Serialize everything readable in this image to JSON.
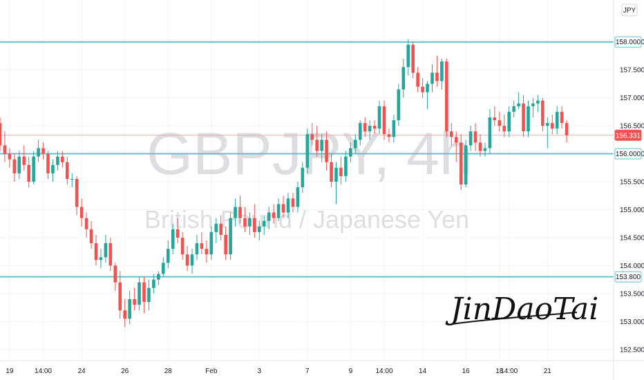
{
  "chart_data": {
    "type": "candlestick",
    "symbol_watermark": "GBPJPY, 4h",
    "name_watermark": "British Pound / Japanese Yen",
    "currency_label": "JPY",
    "signature": "JinDaoTai",
    "ylim": [
      152.3,
      158.75
    ],
    "y_ticks": [
      "152.500",
      "153.000",
      "153.500",
      "154.000",
      "154.500",
      "155.000",
      "155.500",
      "156.000",
      "156.500",
      "157.000",
      "157.500",
      "158.000"
    ],
    "x_ticks": [
      {
        "label": "19",
        "index": 2
      },
      {
        "label": "14:00",
        "index": 9
      },
      {
        "label": "24",
        "index": 17
      },
      {
        "label": "26",
        "index": 26
      },
      {
        "label": "28",
        "index": 35
      },
      {
        "label": "Feb",
        "index": 44
      },
      {
        "label": "3",
        "index": 54
      },
      {
        "label": "7",
        "index": 64
      },
      {
        "label": "9",
        "index": 73
      },
      {
        "label": "14:00",
        "index": 80
      },
      {
        "label": "14",
        "index": 88
      },
      {
        "label": "16",
        "index": 97
      },
      {
        "label": "18",
        "index": 104
      },
      {
        "label": "14:00",
        "index": 106
      },
      {
        "label": "21",
        "index": 114
      }
    ],
    "horizontal_lines": [
      {
        "value": 158.0,
        "label": "158.000"
      },
      {
        "value": 156.0,
        "label": "156.000"
      },
      {
        "value": 153.8,
        "label": "153.800"
      }
    ],
    "last_price": {
      "value": 156.331,
      "label": "156.331"
    },
    "colors": {
      "up": "#26a69a",
      "down": "#ef5350",
      "level": "#5ec4cc",
      "last_line": "#f7a9a8"
    },
    "candles": [
      [
        156.55,
        156.65,
        156.05,
        156.15
      ],
      [
        156.15,
        156.4,
        155.85,
        156.0
      ],
      [
        156.0,
        156.1,
        155.75,
        155.9
      ],
      [
        155.9,
        156.0,
        155.5,
        155.65
      ],
      [
        155.65,
        156.05,
        155.55,
        155.95
      ],
      [
        155.95,
        156.15,
        155.7,
        155.8
      ],
      [
        155.8,
        155.95,
        155.4,
        155.5
      ],
      [
        155.5,
        156.05,
        155.45,
        155.95
      ],
      [
        155.95,
        156.25,
        155.85,
        156.1
      ],
      [
        156.1,
        156.2,
        155.9,
        156.0
      ],
      [
        156.0,
        156.05,
        155.55,
        155.65
      ],
      [
        155.65,
        155.9,
        155.5,
        155.8
      ],
      [
        155.8,
        156.05,
        155.7,
        155.95
      ],
      [
        155.95,
        156.05,
        155.75,
        155.85
      ],
      [
        155.85,
        155.95,
        155.45,
        155.55
      ],
      [
        155.55,
        155.65,
        155.4,
        155.55
      ],
      [
        155.55,
        155.6,
        154.9,
        155.05
      ],
      [
        155.05,
        155.2,
        154.7,
        154.85
      ],
      [
        154.85,
        154.95,
        154.5,
        154.65
      ],
      [
        154.65,
        154.8,
        154.3,
        154.4
      ],
      [
        154.4,
        154.55,
        154.0,
        154.1
      ],
      [
        154.1,
        154.3,
        153.95,
        154.15
      ],
      [
        154.15,
        154.55,
        154.05,
        154.4
      ],
      [
        154.4,
        154.5,
        153.9,
        154.0
      ],
      [
        154.0,
        154.05,
        153.55,
        153.7
      ],
      [
        153.7,
        153.9,
        153.05,
        153.2
      ],
      [
        153.2,
        153.4,
        152.9,
        153.05
      ],
      [
        153.05,
        153.55,
        152.95,
        153.4
      ],
      [
        153.4,
        153.6,
        153.2,
        153.3
      ],
      [
        153.3,
        153.8,
        153.2,
        153.7
      ],
      [
        153.7,
        153.8,
        153.15,
        153.35
      ],
      [
        153.35,
        153.75,
        153.2,
        153.6
      ],
      [
        153.6,
        153.85,
        153.5,
        153.75
      ],
      [
        153.75,
        153.9,
        153.65,
        153.85
      ],
      [
        153.85,
        154.15,
        153.8,
        154.05
      ],
      [
        154.05,
        154.45,
        153.95,
        154.3
      ],
      [
        154.3,
        154.75,
        154.2,
        154.65
      ],
      [
        154.65,
        154.85,
        154.4,
        154.5
      ],
      [
        154.5,
        154.6,
        154.1,
        154.2
      ],
      [
        154.2,
        154.35,
        153.9,
        154.0
      ],
      [
        154.0,
        154.3,
        153.85,
        154.2
      ],
      [
        154.2,
        154.55,
        154.1,
        154.4
      ],
      [
        154.4,
        154.6,
        154.2,
        154.3
      ],
      [
        154.3,
        154.45,
        154.05,
        154.2
      ],
      [
        154.2,
        154.7,
        154.1,
        154.6
      ],
      [
        154.6,
        154.85,
        154.4,
        154.75
      ],
      [
        154.75,
        154.9,
        154.45,
        154.55
      ],
      [
        154.55,
        154.7,
        154.1,
        154.2
      ],
      [
        154.2,
        154.95,
        154.1,
        154.85
      ],
      [
        154.85,
        155.2,
        154.7,
        155.05
      ],
      [
        155.05,
        155.25,
        154.75,
        154.85
      ],
      [
        154.85,
        155.05,
        154.6,
        154.7
      ],
      [
        154.7,
        154.95,
        154.55,
        154.85
      ],
      [
        154.85,
        155.1,
        154.5,
        154.6
      ],
      [
        154.6,
        154.8,
        154.45,
        154.7
      ],
      [
        154.7,
        154.9,
        154.55,
        154.8
      ],
      [
        154.8,
        155.05,
        154.65,
        154.95
      ],
      [
        154.95,
        155.1,
        154.75,
        154.85
      ],
      [
        154.85,
        155.2,
        154.8,
        155.1
      ],
      [
        155.1,
        155.25,
        154.85,
        154.95
      ],
      [
        154.95,
        155.3,
        154.85,
        155.2
      ],
      [
        155.2,
        155.3,
        154.95,
        155.05
      ],
      [
        155.05,
        155.5,
        154.95,
        155.4
      ],
      [
        155.4,
        155.85,
        155.3,
        155.75
      ],
      [
        155.75,
        156.45,
        155.65,
        156.35
      ],
      [
        156.35,
        156.55,
        156.15,
        156.25
      ],
      [
        156.25,
        156.5,
        155.95,
        156.05
      ],
      [
        156.05,
        156.35,
        155.85,
        156.25
      ],
      [
        156.25,
        156.4,
        155.7,
        155.85
      ],
      [
        155.85,
        156.0,
        155.4,
        155.5
      ],
      [
        155.5,
        155.85,
        155.1,
        155.75
      ],
      [
        155.75,
        155.95,
        155.45,
        155.6
      ],
      [
        155.6,
        156.05,
        155.5,
        155.95
      ],
      [
        155.95,
        156.2,
        155.85,
        156.1
      ],
      [
        156.1,
        156.35,
        156.0,
        156.25
      ],
      [
        156.25,
        156.6,
        156.15,
        156.55
      ],
      [
        156.55,
        156.65,
        156.3,
        156.4
      ],
      [
        156.4,
        156.6,
        156.25,
        156.5
      ],
      [
        156.5,
        156.6,
        156.35,
        156.45
      ],
      [
        156.45,
        156.95,
        156.35,
        156.85
      ],
      [
        156.85,
        156.95,
        156.25,
        156.35
      ],
      [
        156.35,
        156.45,
        156.2,
        156.3
      ],
      [
        156.3,
        156.7,
        156.2,
        156.6
      ],
      [
        156.6,
        157.25,
        156.5,
        157.15
      ],
      [
        157.15,
        157.7,
        157.0,
        157.55
      ],
      [
        157.55,
        158.05,
        157.4,
        157.95
      ],
      [
        157.95,
        158.0,
        157.35,
        157.45
      ],
      [
        157.45,
        157.55,
        157.1,
        157.2
      ],
      [
        157.2,
        157.35,
        157.0,
        157.1
      ],
      [
        157.1,
        157.3,
        156.8,
        157.25
      ],
      [
        157.25,
        157.6,
        157.1,
        157.45
      ],
      [
        157.45,
        157.75,
        157.2,
        157.3
      ],
      [
        157.3,
        157.7,
        157.15,
        157.65
      ],
      [
        157.65,
        157.7,
        156.3,
        156.4
      ],
      [
        156.4,
        156.55,
        156.15,
        156.3
      ],
      [
        156.3,
        156.4,
        155.85,
        156.2
      ],
      [
        156.2,
        156.35,
        155.35,
        155.45
      ],
      [
        155.45,
        156.25,
        155.4,
        156.15
      ],
      [
        156.15,
        156.5,
        156.05,
        156.4
      ],
      [
        156.4,
        156.55,
        156.05,
        156.2
      ],
      [
        156.2,
        156.35,
        155.95,
        156.05
      ],
      [
        156.05,
        156.2,
        155.95,
        156.1
      ],
      [
        156.1,
        156.8,
        156.0,
        156.65
      ],
      [
        156.65,
        156.85,
        156.5,
        156.6
      ],
      [
        156.6,
        156.75,
        156.4,
        156.5
      ],
      [
        156.5,
        156.7,
        156.3,
        156.4
      ],
      [
        156.4,
        156.85,
        156.3,
        156.75
      ],
      [
        156.75,
        156.95,
        156.65,
        156.85
      ],
      [
        156.85,
        157.1,
        156.8,
        156.9
      ],
      [
        156.9,
        157.05,
        156.3,
        156.4
      ],
      [
        156.4,
        156.95,
        156.3,
        156.85
      ],
      [
        156.85,
        157.0,
        156.65,
        156.9
      ],
      [
        156.9,
        157.05,
        156.75,
        156.95
      ],
      [
        156.95,
        157.0,
        156.4,
        156.5
      ],
      [
        156.5,
        156.65,
        156.1,
        156.55
      ],
      [
        156.55,
        156.7,
        156.35,
        156.45
      ],
      [
        156.45,
        156.85,
        156.35,
        156.75
      ],
      [
        156.75,
        156.85,
        156.45,
        156.55
      ],
      [
        156.55,
        156.6,
        156.2,
        156.33
      ]
    ]
  }
}
